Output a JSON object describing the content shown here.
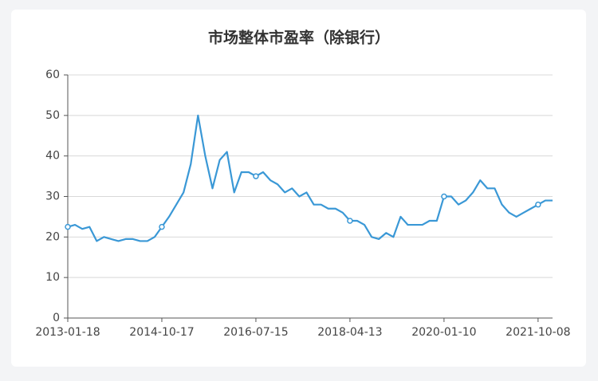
{
  "chart_data": {
    "type": "line",
    "title": "市场整体市盈率（除银行）",
    "categories": [
      "2013-01-18",
      null,
      null,
      null,
      null,
      null,
      null,
      null,
      null,
      null,
      null,
      null,
      null,
      "2014-10-17",
      null,
      null,
      null,
      null,
      null,
      null,
      null,
      null,
      null,
      null,
      null,
      null,
      "2016-07-15",
      null,
      null,
      null,
      null,
      null,
      null,
      null,
      null,
      null,
      null,
      null,
      null,
      "2018-04-13",
      null,
      null,
      null,
      null,
      null,
      null,
      null,
      null,
      null,
      null,
      null,
      null,
      "2020-01-10",
      null,
      null,
      null,
      null,
      null,
      null,
      null,
      null,
      null,
      null,
      null,
      null,
      "2021-10-08",
      null,
      null
    ],
    "values": [
      22.5,
      23,
      22,
      22.5,
      19,
      20,
      19.5,
      19,
      19.5,
      19.5,
      19,
      19,
      20,
      22.5,
      25,
      28,
      31,
      38,
      50,
      40,
      32,
      39,
      41,
      31,
      36,
      36,
      35,
      36,
      34,
      33,
      31,
      32,
      30,
      31,
      28,
      28,
      27,
      27,
      26,
      24,
      24,
      23,
      20,
      19.5,
      21,
      20,
      25,
      23,
      23,
      23,
      24,
      24,
      30,
      30,
      28,
      29,
      31,
      34,
      32,
      32,
      28,
      26,
      25,
      26,
      27,
      28,
      29,
      29
    ],
    "color": "#3a98d6",
    "ylim": [
      0,
      60
    ],
    "yticks": [
      0,
      10,
      20,
      30,
      40,
      50,
      60
    ],
    "grid": true
  }
}
